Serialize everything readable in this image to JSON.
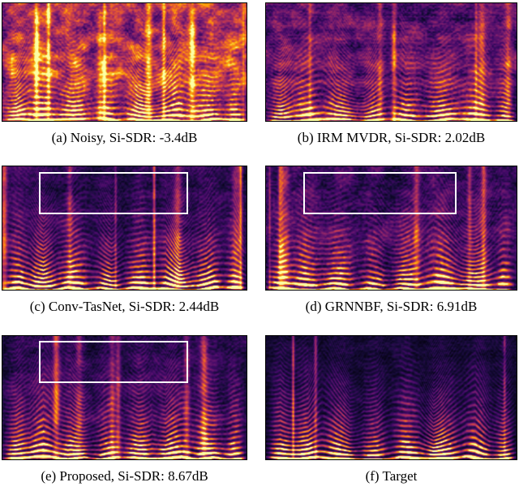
{
  "figure": {
    "panels": [
      {
        "id": "a",
        "type": "spectrogram",
        "method": "Noisy",
        "si_sdr_db": -3.4,
        "caption": "(a) Noisy, Si-SDR: -3.4dB",
        "highlight_box": false
      },
      {
        "id": "b",
        "type": "spectrogram",
        "method": "IRM MVDR",
        "si_sdr_db": 2.02,
        "caption": "(b) IRM MVDR, Si-SDR: 2.02dB",
        "highlight_box": false
      },
      {
        "id": "c",
        "type": "spectrogram",
        "method": "Conv-TasNet",
        "si_sdr_db": 2.44,
        "caption": "(c) Conv-TasNet, Si-SDR: 2.44dB",
        "highlight_box": true
      },
      {
        "id": "d",
        "type": "spectrogram",
        "method": "GRNNBF",
        "si_sdr_db": 6.91,
        "caption": "(d) GRNNBF, Si-SDR: 6.91dB",
        "highlight_box": true
      },
      {
        "id": "e",
        "type": "spectrogram",
        "method": "Proposed",
        "si_sdr_db": 8.67,
        "caption": "(e) Proposed, Si-SDR: 8.67dB",
        "highlight_box": true
      },
      {
        "id": "f",
        "type": "spectrogram",
        "method": "Target",
        "si_sdr_db": null,
        "caption": "(f) Target",
        "highlight_box": false
      }
    ],
    "colors": {
      "colormap": "inferno",
      "highlight_box": "#ffffff",
      "caption_text": "#000000",
      "page_background": "#ffffff"
    }
  }
}
